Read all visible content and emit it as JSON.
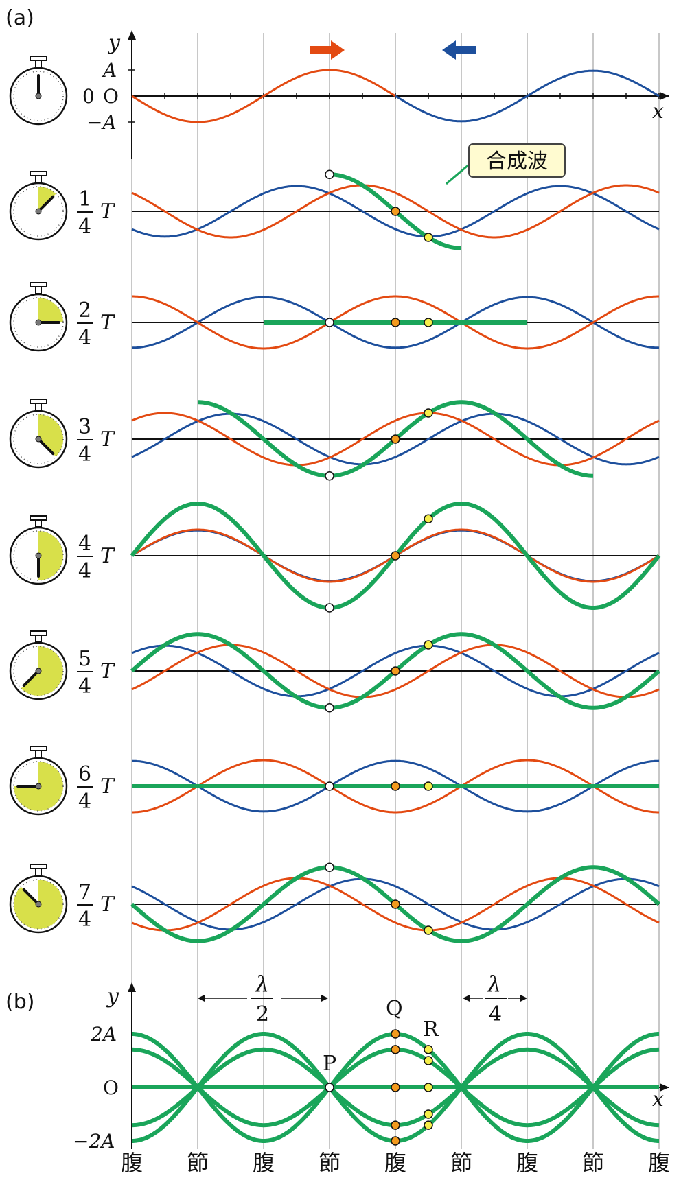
{
  "labels": {
    "panel_a": "(a)",
    "panel_b": "(b)",
    "y_axis": "y",
    "x_axis": "x",
    "amp_pos": "A",
    "amp_neg": "−A",
    "zero": "0",
    "origin": "O",
    "combined_wave": "合成波",
    "two_amp_pos": "2A",
    "two_amp_neg": "−2A",
    "lambda": "λ",
    "half_den": "2",
    "quarter_den": "4",
    "point_p": "P",
    "point_q": "Q",
    "point_r": "R",
    "T": "T"
  },
  "time_rows": [
    {
      "num": "",
      "den": "",
      "label": "0",
      "fraction": 0
    },
    {
      "num": "1",
      "den": "4",
      "fraction": 0.125
    },
    {
      "num": "2",
      "den": "4",
      "fraction": 0.25
    },
    {
      "num": "3",
      "den": "4",
      "fraction": 0.375
    },
    {
      "num": "4",
      "den": "4",
      "fraction": 0.5
    },
    {
      "num": "5",
      "den": "4",
      "fraction": 0.625
    },
    {
      "num": "6",
      "den": "4",
      "fraction": 0.75
    },
    {
      "num": "7",
      "den": "4",
      "fraction": 0.875
    }
  ],
  "bottom_labels": [
    "腹",
    "節",
    "腹",
    "節",
    "腹",
    "節",
    "腹",
    "節",
    "腹"
  ],
  "colors": {
    "incident": "#e34a12",
    "reflected": "#1d4f9c",
    "combined": "#1aa55a",
    "grid": "#c8c8c8",
    "clock_fill": "#d8e04a",
    "point_q": "#f39a1e",
    "point_r": "#f5ee4a"
  }
}
